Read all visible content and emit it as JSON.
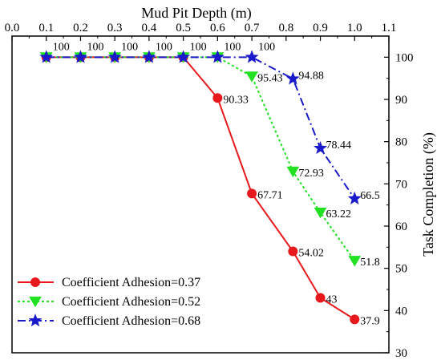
{
  "chart_data": {
    "type": "line",
    "title": "",
    "xlabel": "Mud Pit Depth (m)",
    "ylabel": "Task Completion (%)",
    "xlim": [
      0.0,
      1.1
    ],
    "ylim": [
      30,
      105
    ],
    "x_ticks": [
      "0.0",
      "0.1",
      "0.2",
      "0.3",
      "0.4",
      "0.5",
      "0.6",
      "0.7",
      "0.8",
      "0.9",
      "1.0",
      "1.1"
    ],
    "y_ticks": [
      "30",
      "40",
      "50",
      "60",
      "70",
      "80",
      "90",
      "100"
    ],
    "x_axis_position": "top",
    "y_axis_position": "right",
    "grid": false,
    "legend_position": "bottom-left",
    "series": [
      {
        "name": "Coefficient Adhesion=0.37",
        "color": "#e8191c",
        "line_style": "solid",
        "marker": "circle",
        "x": [
          0.1,
          0.2,
          0.3,
          0.4,
          0.5,
          0.6,
          0.7,
          0.82,
          0.9,
          1.0
        ],
        "y": [
          100,
          100,
          100,
          100,
          100,
          90.33,
          67.71,
          54.02,
          43,
          37.9
        ],
        "labels": [
          "",
          "",
          "",
          "",
          "",
          "90.33",
          "67.71",
          "54.02",
          "43",
          "37.9"
        ]
      },
      {
        "name": "Coefficient Adhesion=0.52",
        "color": "#22e022",
        "line_style": "dotted",
        "marker": "triangle-down",
        "x": [
          0.1,
          0.2,
          0.3,
          0.4,
          0.5,
          0.6,
          0.7,
          0.82,
          0.9,
          1.0
        ],
        "y": [
          100,
          100,
          100,
          100,
          100,
          100,
          95.43,
          72.93,
          63.22,
          51.8
        ],
        "labels": [
          "",
          "",
          "",
          "",
          "",
          "",
          "95.43",
          "72.93",
          "63.22",
          "51.8"
        ]
      },
      {
        "name": "Coefficient Adhesion=0.68",
        "color": "#1a1acc",
        "line_style": "dash-dot",
        "marker": "star",
        "x": [
          0.1,
          0.2,
          0.3,
          0.4,
          0.5,
          0.6,
          0.7,
          0.82,
          0.9,
          1.0
        ],
        "y": [
          100,
          100,
          100,
          100,
          100,
          100,
          100,
          94.88,
          78.44,
          66.5
        ],
        "labels": [
          "100",
          "100",
          "100",
          "100",
          "100",
          "100",
          "100",
          "94.88",
          "78.44",
          "66.5"
        ]
      }
    ]
  }
}
